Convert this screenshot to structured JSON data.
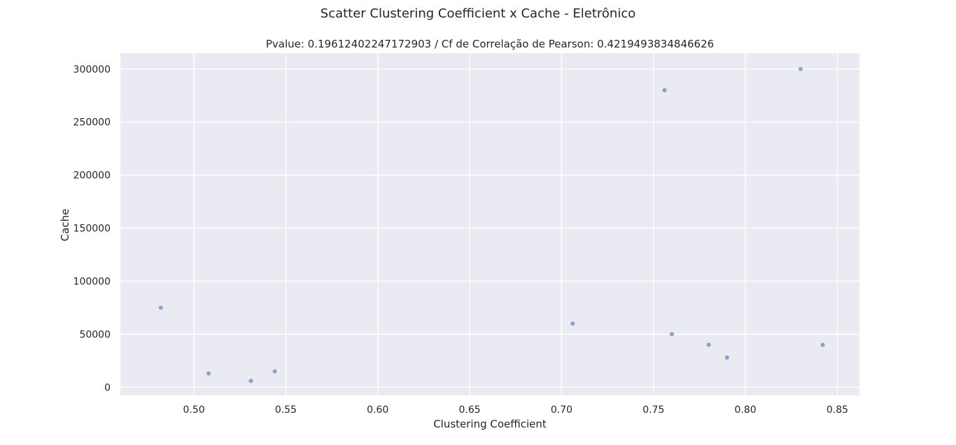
{
  "figure": {
    "suptitle": "Scatter Clustering Coefficient x Cache - Eletrônico"
  },
  "chart_data": {
    "type": "scatter",
    "title": "Pvalue: 0.19612402247172903 / Cf de Correlação de Pearson: 0.4219493834846626",
    "xlabel": "Clustering Coefficient",
    "ylabel": "Cache",
    "xlim": [
      0.46,
      0.862
    ],
    "ylim": [
      -7700,
      315000
    ],
    "xticks": [
      0.5,
      0.55,
      0.6,
      0.65,
      0.7,
      0.75,
      0.8,
      0.85
    ],
    "xtick_labels": [
      "0.50",
      "0.55",
      "0.60",
      "0.65",
      "0.70",
      "0.75",
      "0.80",
      "0.85"
    ],
    "yticks": [
      0,
      50000,
      100000,
      150000,
      200000,
      250000,
      300000
    ],
    "ytick_labels": [
      "0",
      "50000",
      "100000",
      "150000",
      "200000",
      "250000",
      "300000"
    ],
    "grid": true,
    "point_color": "#4c72b0",
    "background_color": "#eaeaf2",
    "points": [
      {
        "x": 0.482,
        "y": 75000
      },
      {
        "x": 0.508,
        "y": 13000
      },
      {
        "x": 0.531,
        "y": 6000
      },
      {
        "x": 0.544,
        "y": 15000
      },
      {
        "x": 0.706,
        "y": 60000
      },
      {
        "x": 0.756,
        "y": 280000
      },
      {
        "x": 0.76,
        "y": 50000
      },
      {
        "x": 0.78,
        "y": 40000
      },
      {
        "x": 0.79,
        "y": 28000
      },
      {
        "x": 0.83,
        "y": 300000
      },
      {
        "x": 0.842,
        "y": 40000
      }
    ]
  }
}
